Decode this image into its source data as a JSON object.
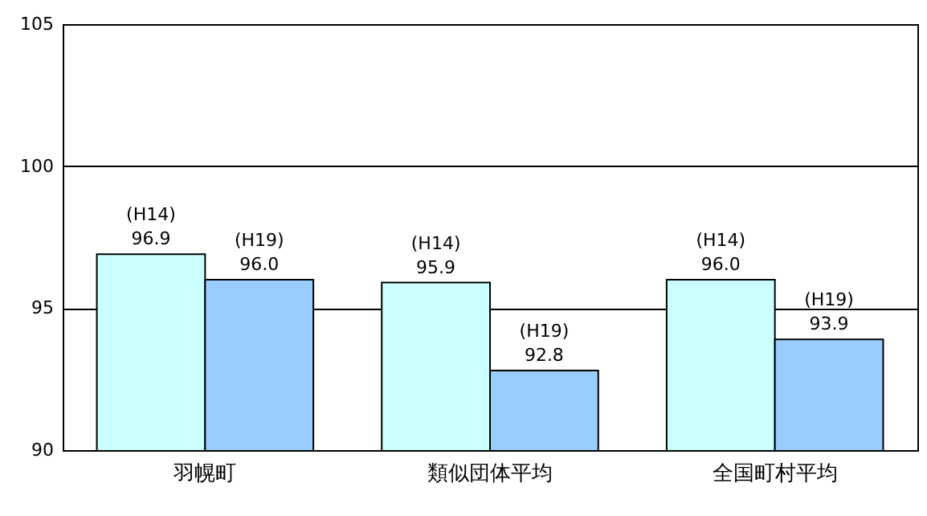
{
  "chart_data": {
    "type": "bar",
    "categories": [
      "羽幌町",
      "類似団体平均",
      "全国町村平均"
    ],
    "series": [
      {
        "name": "(H14)",
        "color": "#ccffff",
        "values": [
          96.9,
          95.9,
          96.0
        ],
        "value_labels": [
          "96.9",
          "95.9",
          "96.0"
        ]
      },
      {
        "name": "(H19)",
        "color": "#99ccff",
        "values": [
          96.0,
          92.8,
          93.9
        ],
        "value_labels": [
          "96.0",
          "92.8",
          "93.9"
        ]
      }
    ],
    "ylim": [
      90,
      105
    ],
    "yticks": [
      90,
      95,
      100,
      105
    ],
    "grid": "y"
  }
}
